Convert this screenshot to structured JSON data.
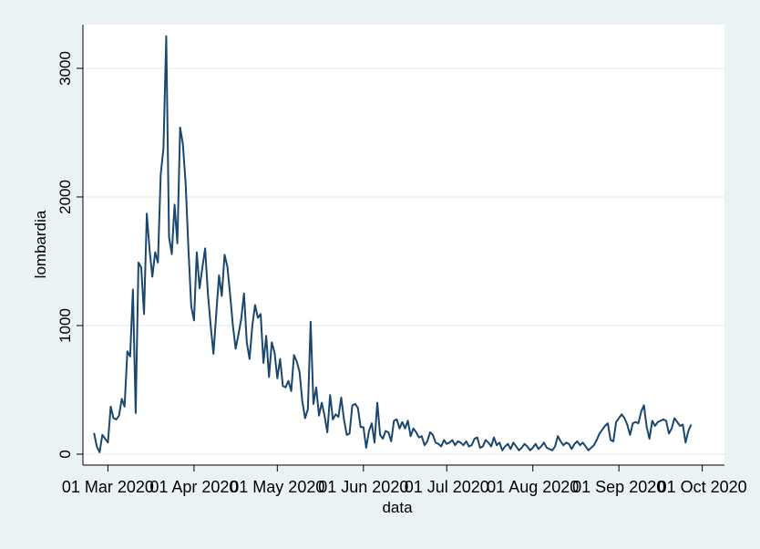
{
  "chart_data": {
    "type": "line",
    "y_label": "lombardia",
    "x_label": "data",
    "color": "#1a476f",
    "grid": true,
    "xlim": [
      "2020-02-21",
      "2020-10-09"
    ],
    "ylim": [
      -85,
      3340
    ],
    "xticks": [
      {
        "value": "2020-03-01",
        "label": "01 Mar 2020"
      },
      {
        "value": "2020-04-01",
        "label": "01 Apr 2020"
      },
      {
        "value": "2020-05-01",
        "label": "01 May 2020"
      },
      {
        "value": "2020-06-01",
        "label": "01 Jun 2020"
      },
      {
        "value": "2020-07-01",
        "label": "01 Jul 2020"
      },
      {
        "value": "2020-08-01",
        "label": "01 Aug 2020"
      },
      {
        "value": "2020-09-01",
        "label": "01 Sep 2020"
      },
      {
        "value": "2020-10-01",
        "label": "01 Oct 2020"
      }
    ],
    "yticks": [
      0,
      1000,
      2000,
      3000
    ],
    "x": [
      "2020-02-25",
      "2020-02-26",
      "2020-02-27",
      "2020-02-28",
      "2020-02-29",
      "2020-03-01",
      "2020-03-02",
      "2020-03-03",
      "2020-03-04",
      "2020-03-05",
      "2020-03-06",
      "2020-03-07",
      "2020-03-08",
      "2020-03-09",
      "2020-03-10",
      "2020-03-11",
      "2020-03-12",
      "2020-03-13",
      "2020-03-14",
      "2020-03-15",
      "2020-03-16",
      "2020-03-17",
      "2020-03-18",
      "2020-03-19",
      "2020-03-20",
      "2020-03-21",
      "2020-03-22",
      "2020-03-23",
      "2020-03-24",
      "2020-03-25",
      "2020-03-26",
      "2020-03-27",
      "2020-03-28",
      "2020-03-29",
      "2020-03-30",
      "2020-03-31",
      "2020-04-01",
      "2020-04-02",
      "2020-04-03",
      "2020-04-04",
      "2020-04-05",
      "2020-04-06",
      "2020-04-07",
      "2020-04-08",
      "2020-04-09",
      "2020-04-10",
      "2020-04-11",
      "2020-04-12",
      "2020-04-13",
      "2020-04-14",
      "2020-04-15",
      "2020-04-16",
      "2020-04-17",
      "2020-04-18",
      "2020-04-19",
      "2020-04-20",
      "2020-04-21",
      "2020-04-22",
      "2020-04-23",
      "2020-04-24",
      "2020-04-25",
      "2020-04-26",
      "2020-04-27",
      "2020-04-28",
      "2020-04-29",
      "2020-04-30",
      "2020-05-01",
      "2020-05-02",
      "2020-05-03",
      "2020-05-04",
      "2020-05-05",
      "2020-05-06",
      "2020-05-07",
      "2020-05-08",
      "2020-05-09",
      "2020-05-10",
      "2020-05-11",
      "2020-05-12",
      "2020-05-13",
      "2020-05-14",
      "2020-05-15",
      "2020-05-16",
      "2020-05-17",
      "2020-05-18",
      "2020-05-19",
      "2020-05-20",
      "2020-05-21",
      "2020-05-22",
      "2020-05-23",
      "2020-05-24",
      "2020-05-25",
      "2020-05-26",
      "2020-05-27",
      "2020-05-28",
      "2020-05-29",
      "2020-05-30",
      "2020-05-31",
      "2020-06-01",
      "2020-06-02",
      "2020-06-03",
      "2020-06-04",
      "2020-06-05",
      "2020-06-06",
      "2020-06-07",
      "2020-06-08",
      "2020-06-09",
      "2020-06-10",
      "2020-06-11",
      "2020-06-12",
      "2020-06-13",
      "2020-06-14",
      "2020-06-15",
      "2020-06-16",
      "2020-06-17",
      "2020-06-18",
      "2020-06-19",
      "2020-06-20",
      "2020-06-21",
      "2020-06-22",
      "2020-06-23",
      "2020-06-24",
      "2020-06-25",
      "2020-06-26",
      "2020-06-27",
      "2020-06-28",
      "2020-06-29",
      "2020-06-30",
      "2020-07-01",
      "2020-07-02",
      "2020-07-03",
      "2020-07-04",
      "2020-07-05",
      "2020-07-06",
      "2020-07-07",
      "2020-07-08",
      "2020-07-09",
      "2020-07-10",
      "2020-07-11",
      "2020-07-12",
      "2020-07-13",
      "2020-07-14",
      "2020-07-15",
      "2020-07-16",
      "2020-07-17",
      "2020-07-18",
      "2020-07-19",
      "2020-07-20",
      "2020-07-21",
      "2020-07-22",
      "2020-07-23",
      "2020-07-24",
      "2020-07-25",
      "2020-07-26",
      "2020-07-27",
      "2020-07-28",
      "2020-07-29",
      "2020-07-30",
      "2020-07-31",
      "2020-08-01",
      "2020-08-02",
      "2020-08-03",
      "2020-08-04",
      "2020-08-05",
      "2020-08-06",
      "2020-08-07",
      "2020-08-08",
      "2020-08-09",
      "2020-08-10",
      "2020-08-11",
      "2020-08-12",
      "2020-08-13",
      "2020-08-14",
      "2020-08-15",
      "2020-08-16",
      "2020-08-17",
      "2020-08-18",
      "2020-08-19",
      "2020-08-20",
      "2020-08-21",
      "2020-08-22",
      "2020-08-23",
      "2020-08-24",
      "2020-08-25",
      "2020-08-26",
      "2020-08-27",
      "2020-08-28",
      "2020-08-29",
      "2020-08-30",
      "2020-08-31",
      "2020-09-01",
      "2020-09-02",
      "2020-09-03",
      "2020-09-04",
      "2020-09-05",
      "2020-09-06",
      "2020-09-07",
      "2020-09-08",
      "2020-09-09",
      "2020-09-10",
      "2020-09-11",
      "2020-09-12",
      "2020-09-13",
      "2020-09-14",
      "2020-09-15",
      "2020-09-16",
      "2020-09-17",
      "2020-09-18",
      "2020-09-19",
      "2020-09-20",
      "2020-09-21",
      "2020-09-22",
      "2020-09-23",
      "2020-09-24",
      "2020-09-25",
      "2020-09-26",
      "2020-09-27"
    ],
    "values": [
      165,
      60,
      15,
      150,
      120,
      90,
      370,
      280,
      270,
      300,
      430,
      370,
      800,
      760,
      1280,
      320,
      1490,
      1450,
      1090,
      1870,
      1590,
      1380,
      1570,
      1490,
      2170,
      2380,
      3250,
      1690,
      1555,
      1940,
      1640,
      2540,
      2410,
      2100,
      1590,
      1150,
      1040,
      1570,
      1290,
      1450,
      1600,
      1250,
      1000,
      780,
      1090,
      1390,
      1230,
      1550,
      1460,
      1240,
      1000,
      820,
      930,
      1050,
      1250,
      870,
      740,
      1000,
      1160,
      1060,
      1090,
      710,
      920,
      600,
      870,
      790,
      590,
      740,
      530,
      520,
      570,
      490,
      770,
      720,
      640,
      410,
      280,
      350,
      1030,
      390,
      520,
      300,
      400,
      300,
      170,
      460,
      270,
      310,
      290,
      440,
      270,
      150,
      160,
      380,
      390,
      360,
      210,
      210,
      50,
      180,
      240,
      90,
      400,
      150,
      120,
      180,
      170,
      100,
      260,
      270,
      200,
      250,
      200,
      260,
      140,
      200,
      170,
      130,
      140,
      70,
      100,
      170,
      150,
      90,
      80,
      60,
      110,
      80,
      90,
      110,
      70,
      100,
      90,
      70,
      100,
      60,
      70,
      120,
      130,
      50,
      60,
      110,
      90,
      60,
      130,
      70,
      90,
      30,
      60,
      80,
      40,
      90,
      60,
      30,
      50,
      80,
      60,
      30,
      50,
      80,
      40,
      60,
      90,
      50,
      40,
      30,
      60,
      140,
      100,
      70,
      90,
      80,
      40,
      80,
      100,
      70,
      90,
      60,
      30,
      50,
      70,
      110,
      160,
      190,
      220,
      240,
      110,
      100,
      250,
      280,
      310,
      280,
      230,
      150,
      240,
      250,
      240,
      330,
      380,
      210,
      120,
      260,
      220,
      250,
      260,
      270,
      260,
      160,
      200,
      280,
      250,
      220,
      230,
      90,
      180,
      230
    ]
  }
}
